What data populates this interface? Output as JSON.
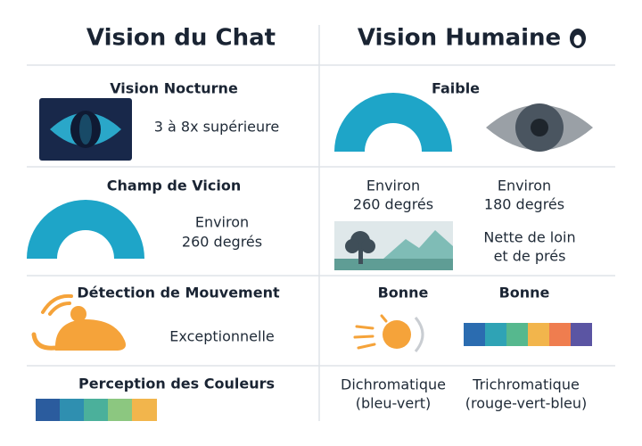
{
  "header": {
    "left": "Vision du Chat",
    "right": "Vision Humaine"
  },
  "rows": [
    {
      "cat_label": "Vision Nocturne",
      "cat_value": [
        "3 à 8x supérieure"
      ],
      "human_label": "Faible"
    },
    {
      "cat_label": "Champ de Vicion",
      "cat_value": [
        "Environ",
        "260 degrés"
      ],
      "human_a": [
        "Environ",
        "260 degrés"
      ],
      "human_b": [
        "Environ",
        "180 degrés"
      ],
      "human_c": [
        "Nette de loin",
        "et de prés"
      ]
    },
    {
      "cat_label": "Détection de Mouvement",
      "cat_value": [
        "Exceptionnelle"
      ],
      "human_a": [
        "Bonne"
      ],
      "human_b": [
        "Bonne"
      ]
    },
    {
      "cat_label": "Perception des Couleurs",
      "human_a": [
        "Dichromatique",
        "(bleu-vert)"
      ],
      "human_b": [
        "Trichromatique",
        "(rouge-vert-bleu)"
      ]
    }
  ]
}
